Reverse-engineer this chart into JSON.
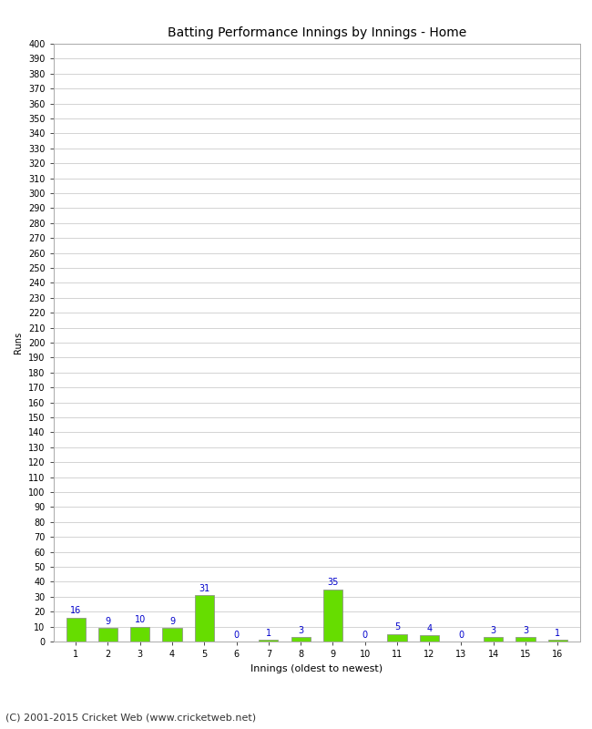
{
  "title": "Batting Performance Innings by Innings - Home",
  "xlabel": "Innings (oldest to newest)",
  "ylabel": "Runs",
  "categories": [
    1,
    2,
    3,
    4,
    5,
    6,
    7,
    8,
    9,
    10,
    11,
    12,
    13,
    14,
    15,
    16
  ],
  "values": [
    16,
    9,
    10,
    9,
    31,
    0,
    1,
    3,
    35,
    0,
    5,
    4,
    0,
    3,
    3,
    1
  ],
  "bar_color": "#66dd00",
  "bar_edge_color": "#888888",
  "label_color": "#0000cc",
  "ylim": [
    0,
    400
  ],
  "ytick_step": 10,
  "grid_color": "#cccccc",
  "background_color": "#ffffff",
  "footer": "(C) 2001-2015 Cricket Web (www.cricketweb.net)",
  "title_fontsize": 10,
  "xlabel_fontsize": 8,
  "ylabel_fontsize": 7,
  "tick_fontsize": 7,
  "value_label_fontsize": 7,
  "footer_fontsize": 8
}
